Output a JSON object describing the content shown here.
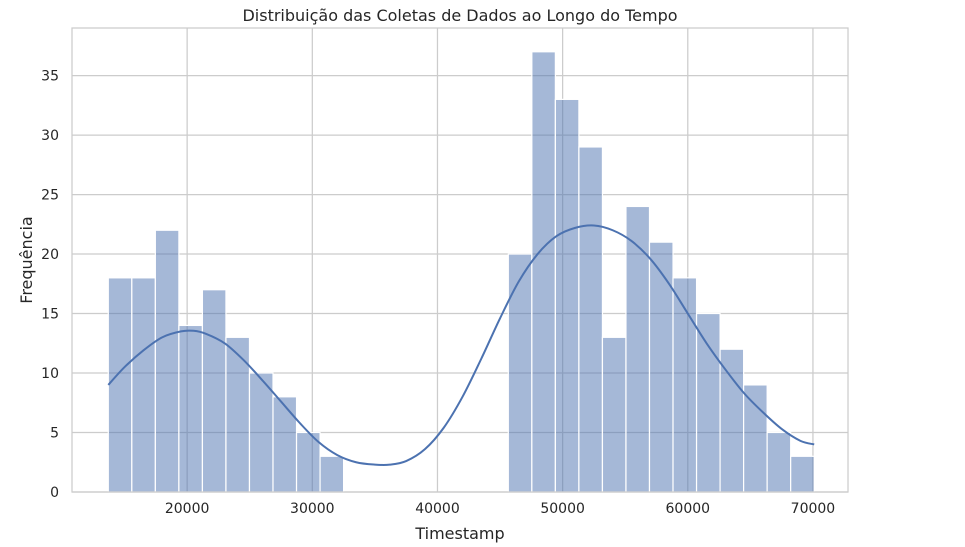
{
  "chart_data": {
    "type": "histogram",
    "title": "Distribuição das Coletas de Dados ao Longo do Tempo",
    "xlabel": "Timestamp",
    "ylabel": "Frequência",
    "xlim": [
      10800,
      72800
    ],
    "ylim": [
      0,
      39
    ],
    "xticks": [
      20000,
      30000,
      40000,
      50000,
      60000,
      70000
    ],
    "xtick_labels": [
      "20000",
      "30000",
      "40000",
      "50000",
      "60000",
      "70000"
    ],
    "yticks": [
      0,
      5,
      10,
      15,
      20,
      25,
      30,
      35
    ],
    "ytick_labels": [
      "0",
      "5",
      "10",
      "15",
      "20",
      "25",
      "30",
      "35"
    ],
    "grid": true,
    "bar_color": "#4c72b0",
    "bar_opacity": 0.5,
    "kde_color": "#4c72b0",
    "bins": [
      {
        "x0": 13700,
        "x1": 15580,
        "count": 18
      },
      {
        "x0": 15580,
        "x1": 17460,
        "count": 18
      },
      {
        "x0": 17460,
        "x1": 19340,
        "count": 22
      },
      {
        "x0": 19340,
        "x1": 21220,
        "count": 14
      },
      {
        "x0": 21220,
        "x1": 23100,
        "count": 17
      },
      {
        "x0": 23100,
        "x1": 24980,
        "count": 13
      },
      {
        "x0": 24980,
        "x1": 26860,
        "count": 10
      },
      {
        "x0": 26860,
        "x1": 28740,
        "count": 8
      },
      {
        "x0": 28740,
        "x1": 30620,
        "count": 5
      },
      {
        "x0": 30620,
        "x1": 32500,
        "count": 3
      },
      {
        "x0": 32500,
        "x1": 34380,
        "count": 0
      },
      {
        "x0": 34380,
        "x1": 36260,
        "count": 0
      },
      {
        "x0": 36260,
        "x1": 38140,
        "count": 0
      },
      {
        "x0": 38140,
        "x1": 40020,
        "count": 0
      },
      {
        "x0": 40020,
        "x1": 41900,
        "count": 0
      },
      {
        "x0": 41900,
        "x1": 43780,
        "count": 0
      },
      {
        "x0": 43780,
        "x1": 45660,
        "count": 0
      },
      {
        "x0": 45660,
        "x1": 47540,
        "count": 20
      },
      {
        "x0": 47540,
        "x1": 49420,
        "count": 37
      },
      {
        "x0": 49420,
        "x1": 51300,
        "count": 33
      },
      {
        "x0": 51300,
        "x1": 53180,
        "count": 29
      },
      {
        "x0": 53180,
        "x1": 55060,
        "count": 13
      },
      {
        "x0": 55060,
        "x1": 56940,
        "count": 24
      },
      {
        "x0": 56940,
        "x1": 58820,
        "count": 21
      },
      {
        "x0": 58820,
        "x1": 60700,
        "count": 18
      },
      {
        "x0": 60700,
        "x1": 62580,
        "count": 15
      },
      {
        "x0": 62580,
        "x1": 64460,
        "count": 12
      },
      {
        "x0": 64460,
        "x1": 66340,
        "count": 9
      },
      {
        "x0": 66340,
        "x1": 68220,
        "count": 5
      },
      {
        "x0": 68220,
        "x1": 70100,
        "count": 3
      }
    ],
    "kde": {
      "x": [
        13700,
        15000,
        16500,
        18000,
        19500,
        20500,
        21500,
        23000,
        24500,
        26000,
        27500,
        29000,
        30500,
        32000,
        33500,
        35000,
        36200,
        37500,
        39000,
        40500,
        42000,
        43500,
        45000,
        46500,
        48000,
        49500,
        51000,
        52500,
        54000,
        55500,
        57000,
        58500,
        60000,
        61500,
        63000,
        64500,
        66000,
        67500,
        69000,
        70100
      ],
      "y": [
        9.0,
        10.5,
        11.9,
        13.0,
        13.5,
        13.55,
        13.3,
        12.5,
        11.1,
        9.4,
        7.6,
        5.8,
        4.2,
        3.1,
        2.5,
        2.3,
        2.3,
        2.6,
        3.6,
        5.4,
        8.0,
        11.2,
        14.6,
        17.7,
        20.0,
        21.5,
        22.2,
        22.4,
        22.0,
        21.1,
        19.6,
        17.5,
        15.0,
        12.5,
        10.3,
        8.3,
        6.7,
        5.3,
        4.3,
        4.0
      ]
    }
  }
}
